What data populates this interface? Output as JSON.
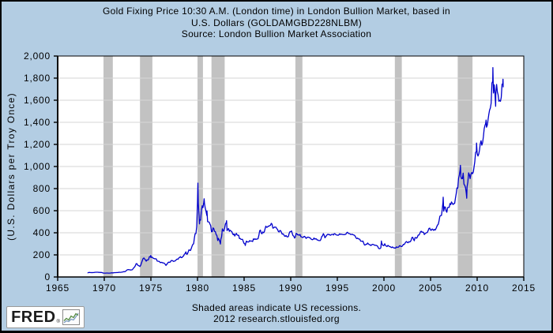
{
  "colors": {
    "background": "#b3cde3",
    "plot_background": "#ffffff",
    "recession_band": "#c2c2c2",
    "gridline": "#d6d6d6",
    "axis": "#000000",
    "line": "#0000cc",
    "text": "#000000"
  },
  "title": {
    "line1": "Gold Fixing Price 10:30 A.M. (London time) in London Bullion Market, based in",
    "line2": "U.S. Dollars (GOLDAMGBD228NLBM)",
    "line3": "Source: London Bullion Market Association"
  },
  "y_axis": {
    "label": "(U.S. Dollars per Troy Once)"
  },
  "footer": {
    "note": "Shaded areas indicate US recessions.",
    "credit": "2012 research.stlouisfed.org"
  },
  "logo": {
    "text": "FRED",
    "registered": "®"
  },
  "chart_data": {
    "type": "line",
    "title": "Gold Fixing Price 10:30 A.M. (London time) in London Bullion Market, based in U.S. Dollars (GOLDAMGBD228NLBM)",
    "source": "London Bullion Market Association",
    "xlabel": "",
    "ylabel": "(U.S. Dollars per Troy Once)",
    "xlim": [
      1965,
      2015
    ],
    "ylim": [
      0,
      2000
    ],
    "xticks": [
      1965,
      1970,
      1975,
      1980,
      1985,
      1990,
      1995,
      2000,
      2005,
      2010,
      2015
    ],
    "yticks": [
      0,
      200,
      400,
      600,
      800,
      1000,
      1200,
      1400,
      1600,
      1800,
      2000
    ],
    "grid": "horizontal",
    "legend": "none",
    "line_color": "#0000cc",
    "recession_bands": [
      [
        1969.917,
        1970.917
      ],
      [
        1973.833,
        1975.167
      ],
      [
        1980.0,
        1980.583
      ],
      [
        1981.5,
        1982.917
      ],
      [
        1990.5,
        1991.25
      ],
      [
        2001.167,
        2001.917
      ],
      [
        2007.917,
        2009.5
      ]
    ],
    "series": [
      {
        "name": "Gold Fixing Price (GOLDAMGBD228NLBM)",
        "unit": "U.S. Dollars per Troy Ounce",
        "frequency": "monthly",
        "start_year": 1968,
        "start_month": 4,
        "values": [
          38,
          41,
          41,
          40,
          39,
          40,
          39,
          40,
          41,
          42,
          43,
          43,
          43,
          43,
          41,
          42,
          41,
          41,
          40,
          37,
          35,
          35,
          35,
          35,
          36,
          36,
          35,
          35,
          35,
          36,
          37,
          37,
          37,
          38,
          39,
          39,
          39,
          40,
          40,
          41,
          43,
          42,
          42,
          43,
          44,
          46,
          48,
          48,
          49,
          55,
          62,
          66,
          67,
          65,
          65,
          63,
          64,
          65,
          74,
          84,
          90,
          102,
          120,
          120,
          107,
          103,
          100,
          95,
          107,
          129,
          150,
          168,
          172,
          163,
          154,
          143,
          155,
          152,
          159,
          182,
          184,
          176,
          180,
          178,
          170,
          167,
          164,
          165,
          163,
          144,
          143,
          142,
          139,
          131,
          131,
          133,
          128,
          127,
          126,
          118,
          110,
          114,
          116,
          131,
          134,
          132,
          136,
          148,
          149,
          147,
          141,
          143,
          145,
          150,
          159,
          162,
          160,
          173,
          178,
          184,
          175,
          176,
          184,
          189,
          206,
          212,
          227,
          206,
          208,
          227,
          246,
          242,
          239,
          258,
          279,
          295,
          301,
          355,
          392,
          392,
          455,
          675,
          665,
          554,
          517,
          514,
          601,
          644,
          627,
          674,
          661,
          624,
          595,
          557,
          500,
          499,
          496,
          480,
          465,
          409,
          410,
          444,
          438,
          413,
          410,
          384,
          374,
          330,
          350,
          334,
          315,
          339,
          364,
          436,
          422,
          415,
          444,
          481,
          492,
          420,
          433,
          438,
          413,
          423,
          416,
          412,
          394,
          382,
          389,
          371,
          386,
          394,
          381,
          377,
          378,
          348,
          348,
          341,
          340,
          341,
          320,
          303,
          299,
          304,
          325,
          317,
          317,
          317,
          329,
          324,
          326,
          325,
          321,
          345,
          339,
          346,
          340,
          343,
          343,
          348,
          377,
          418,
          424,
          399,
          391,
          408,
          401,
          409,
          438,
          460,
          450,
          451,
          461,
          460,
          465,
          468,
          486,
          477,
          442,
          444,
          452,
          451,
          451,
          438,
          431,
          413,
          407,
          420,
          419,
          404,
          388,
          390,
          384,
          371,
          368,
          375,
          365,
          362,
          367,
          394,
          409,
          410,
          417,
          393,
          374,
          369,
          352,
          363,
          395,
          390,
          381,
          382,
          378,
          384,
          364,
          363,
          358,
          357,
          367,
          368,
          356,
          349,
          359,
          360,
          361,
          355,
          354,
          344,
          339,
          337,
          341,
          353,
          343,
          346,
          344,
          335,
          335,
          329,
          329,
          330,
          342,
          367,
          372,
          392,
          379,
          355,
          364,
          374,
          383,
          387,
          382,
          384,
          377,
          381,
          386,
          386,
          380,
          392,
          390,
          384,
          379,
          379,
          377,
          382,
          391,
          385,
          388,
          386,
          384,
          383,
          383,
          385,
          387,
          400,
          405,
          396,
          393,
          392,
          385,
          384,
          387,
          383,
          381,
          378,
          369,
          354,
          347,
          352,
          345,
          344,
          341,
          324,
          324,
          323,
          325,
          306,
          289,
          289,
          297,
          296,
          308,
          299,
          292,
          293,
          284,
          289,
          296,
          294,
          292,
          287,
          287,
          286,
          283,
          277,
          261,
          256,
          257,
          265,
          311,
          293,
          284,
          284,
          301,
          286,
          280,
          275,
          286,
          282,
          275,
          274,
          270,
          266,
          272,
          266,
          262,
          263,
          261,
          272,
          270,
          268,
          272,
          283,
          283,
          276,
          276,
          282,
          296,
          294,
          303,
          315,
          321,
          313,
          310,
          319,
          317,
          319,
          332,
          357,
          359,
          341,
          328,
          356,
          357,
          351,
          360,
          379,
          379,
          390,
          408,
          414,
          405,
          407,
          403,
          384,
          392,
          398,
          401,
          405,
          421,
          439,
          442,
          424,
          423,
          434,
          429,
          422,
          431,
          425,
          438,
          456,
          470,
          477,
          510,
          550,
          555,
          557,
          611,
          675,
          596,
          634,
          633,
          598,
          586,
          628,
          630,
          631,
          665,
          655,
          679,
          667,
          656,
          665,
          665,
          713,
          755,
          806,
          803,
          890,
          922,
          968,
          910,
          889,
          890,
          940,
          839,
          830,
          807,
          761,
          816,
          859,
          943,
          924,
          890,
          929,
          946,
          934,
          949,
          997,
          1043,
          1127,
          1135,
          1118,
          1095,
          1113,
          1149,
          1205,
          1233,
          1193,
          1216,
          1271,
          1342,
          1370,
          1391,
          1356,
          1373,
          1424,
          1474,
          1510,
          1529,
          1573,
          1755,
          1772,
          1665,
          1739,
          1652,
          1656,
          1743,
          1674,
          1650,
          1591,
          1599,
          1590,
          1626,
          1745,
          1747
        ],
        "extra_points": [
          [
            1974.99,
            195
          ],
          [
            1976.62,
            104
          ],
          [
            1980.04,
            850
          ],
          [
            1980.21,
            481
          ],
          [
            1980.71,
            708
          ],
          [
            1981.02,
            597
          ],
          [
            1982.46,
            298
          ],
          [
            1983.12,
            509
          ],
          [
            1985.13,
            285
          ],
          [
            1999.73,
            326
          ],
          [
            2006.36,
            722
          ],
          [
            2008.2,
            1011
          ],
          [
            2008.88,
            713
          ],
          [
            2009.93,
            1212
          ],
          [
            2010.96,
            1421
          ],
          [
            2011.69,
            1895
          ],
          [
            2011.98,
            1545
          ],
          [
            2012.77,
            1790
          ],
          [
            2012.8,
            1721
          ]
        ]
      }
    ]
  }
}
